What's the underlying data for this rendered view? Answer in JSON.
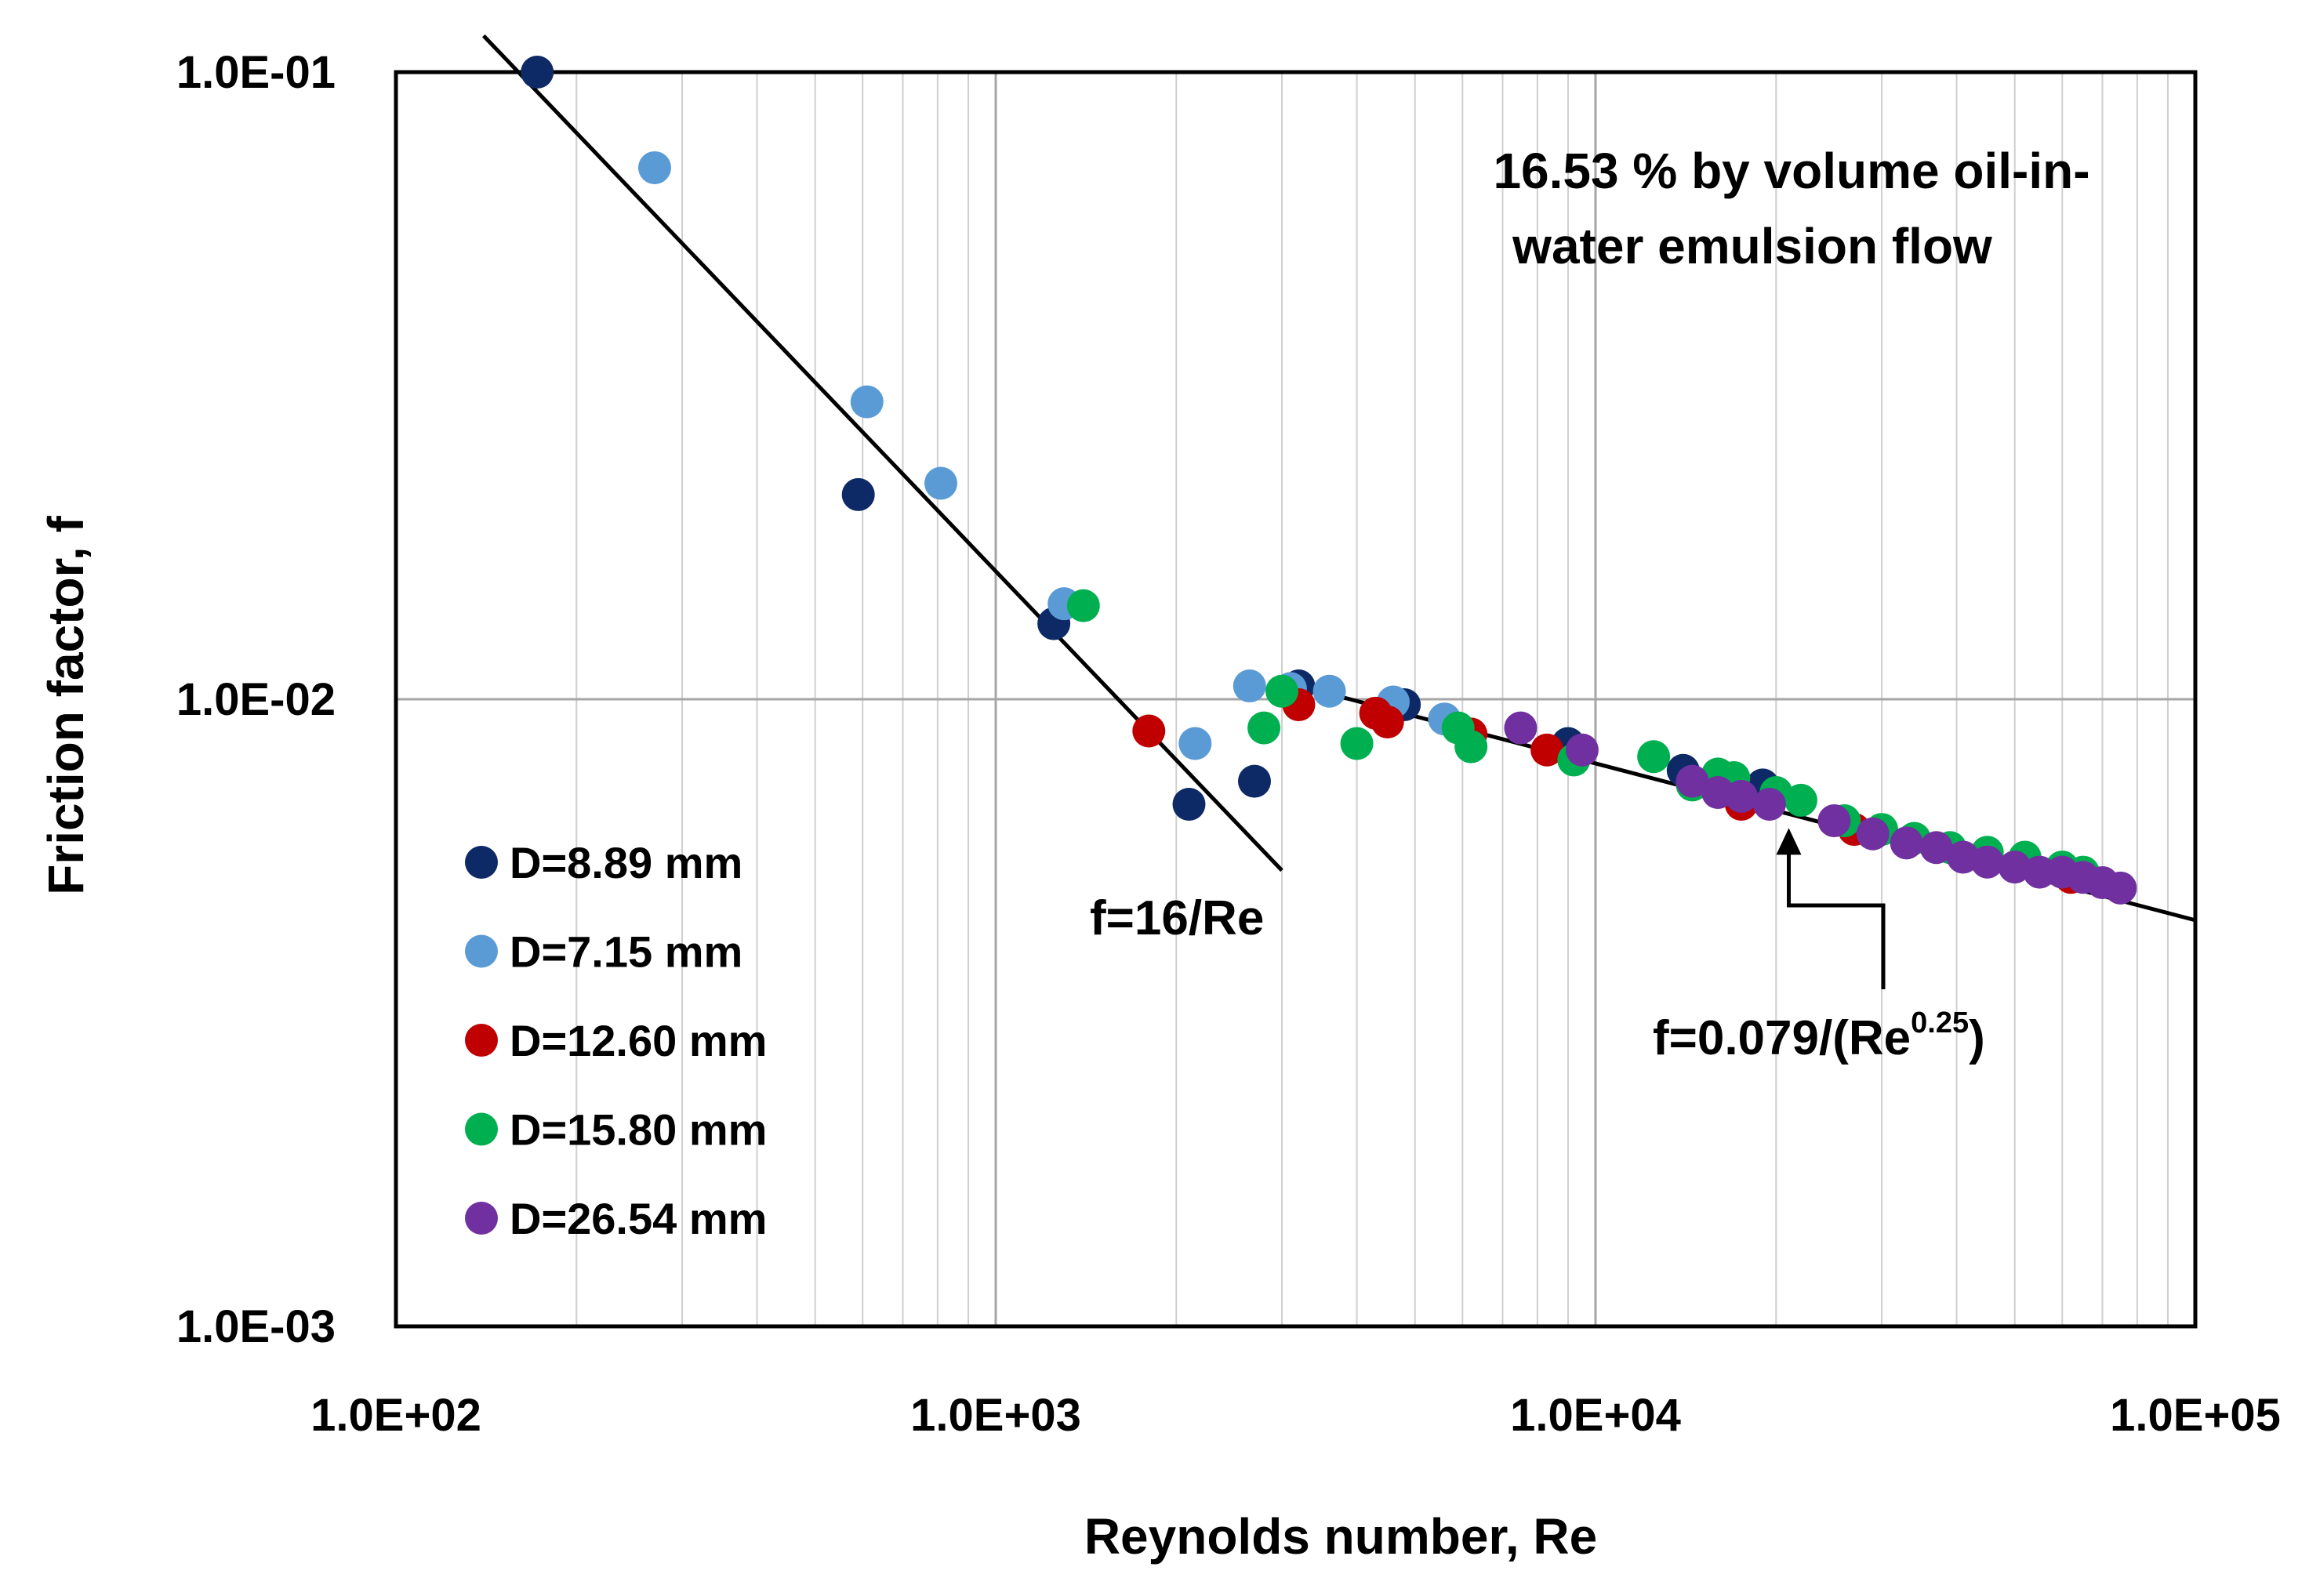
{
  "chart_data": {
    "type": "scatter",
    "x_scale": "log",
    "y_scale": "log",
    "xlim": [
      100,
      100000
    ],
    "ylim": [
      0.001,
      0.1
    ],
    "xlabel": "Reynolds number, Re",
    "ylabel": "Friction factor, f",
    "x_tick_labels": [
      "1.0E+02",
      "1.0E+03",
      "1.0E+04",
      "1.0E+05"
    ],
    "y_tick_labels": [
      "1.0E-03",
      "1.0E-02",
      "1.0E-01"
    ],
    "annotation": {
      "line1": "16.53 % by volume oil-in-",
      "line2": "water emulsion flow"
    },
    "legend_position": "left",
    "reference_lines": [
      {
        "name": "laminar",
        "label": "f=16/Re",
        "x_range": [
          140,
          3000
        ]
      },
      {
        "name": "turbulent",
        "label_prefix": "f=0.079/(Re",
        "label_sup": "0.25",
        "label_suffix": ")",
        "x_range": [
          3000,
          100000
        ],
        "arrow_x": 21000
      }
    ],
    "series": [
      {
        "name": "D=8.89 mm",
        "color": "#0d2a66",
        "points": [
          [
            172,
            0.1
          ],
          [
            590,
            0.0212
          ],
          [
            1250,
            0.0132
          ],
          [
            2100,
            0.0068
          ],
          [
            2700,
            0.0074
          ],
          [
            3200,
            0.0105
          ],
          [
            4800,
            0.0098
          ],
          [
            9000,
            0.0085
          ],
          [
            14000,
            0.0077
          ],
          [
            19000,
            0.0073
          ]
        ]
      },
      {
        "name": "D=7.15 mm",
        "color": "#5b9bd5",
        "points": [
          [
            270,
            0.0704
          ],
          [
            610,
            0.0298
          ],
          [
            810,
            0.0221
          ],
          [
            1300,
            0.0142
          ],
          [
            2150,
            0.0085
          ],
          [
            2650,
            0.0105
          ],
          [
            3100,
            0.0104
          ],
          [
            3600,
            0.0103
          ],
          [
            4600,
            0.0099
          ],
          [
            5600,
            0.0093
          ]
        ]
      },
      {
        "name": "D=12.60 mm",
        "color": "#c00000",
        "points": [
          [
            1800,
            0.0089
          ],
          [
            3200,
            0.0098
          ],
          [
            4300,
            0.0095
          ],
          [
            4500,
            0.0092
          ],
          [
            6200,
            0.0088
          ],
          [
            8300,
            0.0083
          ],
          [
            17500,
            0.0068
          ],
          [
            27000,
            0.0062
          ],
          [
            45000,
            0.0056
          ],
          [
            62000,
            0.0052
          ]
        ]
      },
      {
        "name": "D=15.80 mm",
        "color": "#00b050",
        "points": [
          [
            1400,
            0.0141
          ],
          [
            2800,
            0.009
          ],
          [
            3000,
            0.0103
          ],
          [
            4000,
            0.0085
          ],
          [
            5900,
            0.009
          ],
          [
            6200,
            0.0084
          ],
          [
            9200,
            0.008
          ],
          [
            12500,
            0.0081
          ],
          [
            14500,
            0.0073
          ],
          [
            16000,
            0.0076
          ],
          [
            17000,
            0.0075
          ],
          [
            20000,
            0.0071
          ],
          [
            22000,
            0.0069
          ],
          [
            26000,
            0.0064
          ],
          [
            30000,
            0.0062
          ],
          [
            34000,
            0.006
          ],
          [
            39000,
            0.0058
          ],
          [
            45000,
            0.0057
          ],
          [
            52000,
            0.0056
          ],
          [
            60000,
            0.0054
          ],
          [
            65000,
            0.0053
          ]
        ]
      },
      {
        "name": "D=26.54 mm",
        "color": "#7030a0",
        "points": [
          [
            7500,
            0.009
          ],
          [
            9500,
            0.0083
          ],
          [
            14500,
            0.0074
          ],
          [
            16000,
            0.0071
          ],
          [
            17500,
            0.007
          ],
          [
            19500,
            0.0068
          ],
          [
            25000,
            0.0064
          ],
          [
            29000,
            0.0061
          ],
          [
            33000,
            0.0059
          ],
          [
            37000,
            0.0058
          ],
          [
            41000,
            0.0056
          ],
          [
            45000,
            0.0055
          ],
          [
            50000,
            0.0054
          ],
          [
            55000,
            0.0053
          ],
          [
            60000,
            0.0053
          ],
          [
            65000,
            0.0052
          ],
          [
            70000,
            0.0051
          ],
          [
            75000,
            0.005
          ]
        ]
      }
    ]
  }
}
